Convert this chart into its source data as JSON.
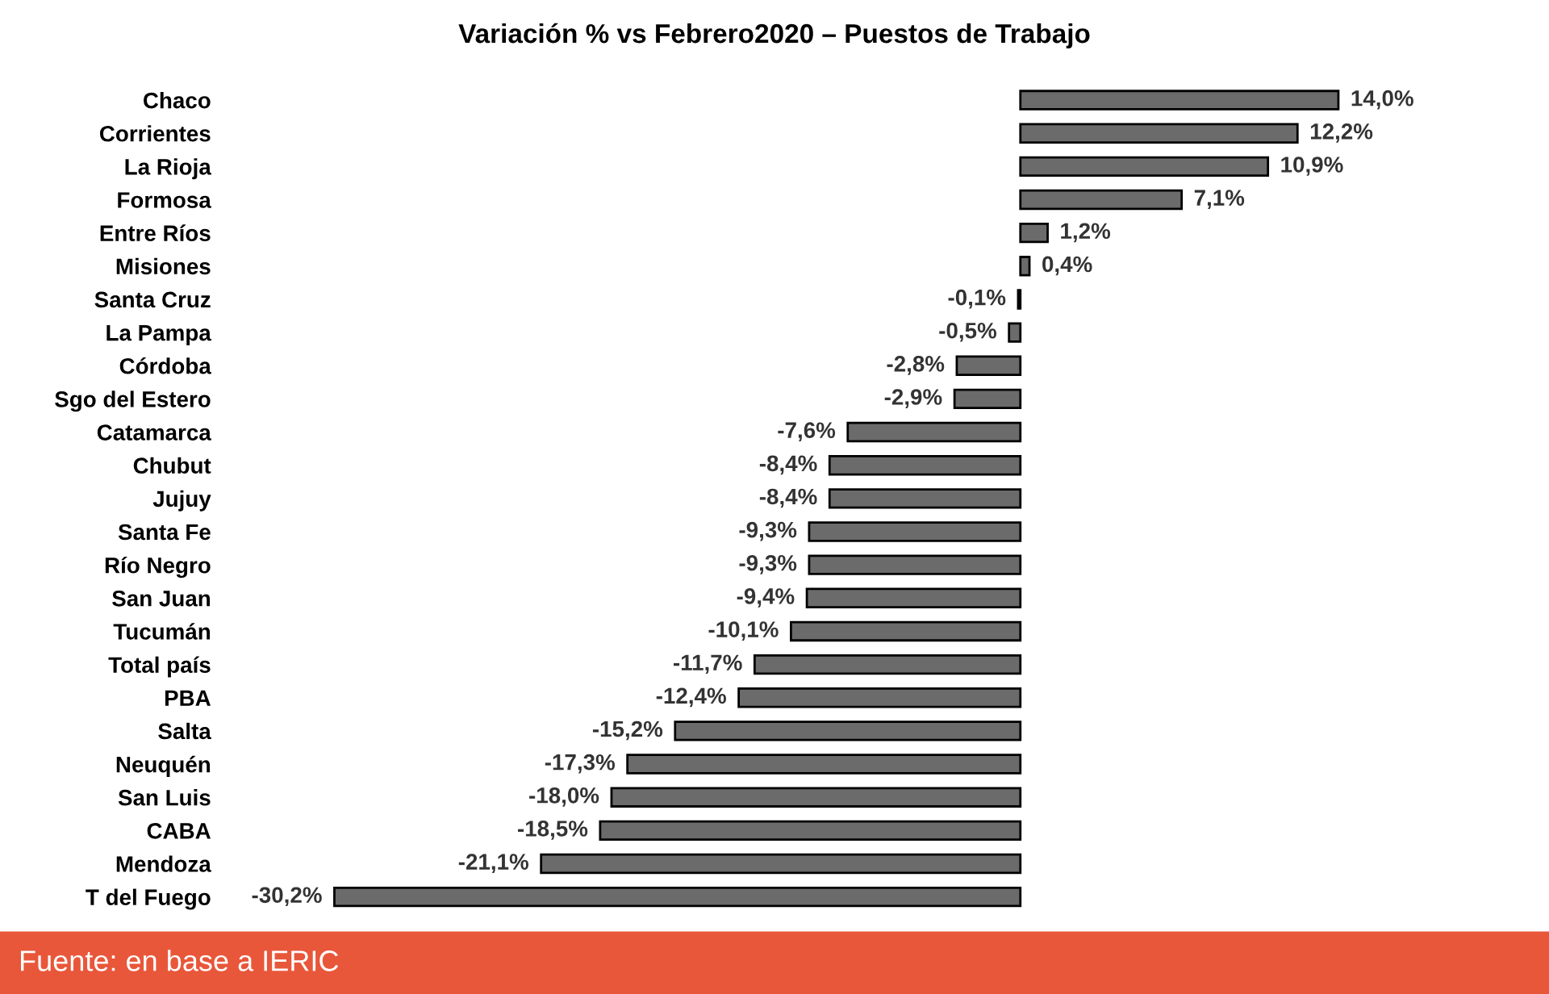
{
  "chart_data": {
    "type": "bar",
    "orientation": "horizontal",
    "title": "Variación % vs Febrero2020 – Puestos de Trabajo",
    "categories": [
      "Chaco",
      "Corrientes",
      "La Rioja",
      "Formosa",
      "Entre Ríos",
      "Misiones",
      "Santa Cruz",
      "La Pampa",
      "Córdoba",
      "Sgo del Estero",
      "Catamarca",
      "Chubut",
      "Jujuy",
      "Santa Fe",
      "Río Negro",
      "San Juan",
      "Tucumán",
      "Total país",
      "PBA",
      "Salta",
      "Neuquén",
      "San Luis",
      "CABA",
      "Mendoza",
      "T del Fuego"
    ],
    "values": [
      14.0,
      12.2,
      10.9,
      7.1,
      1.2,
      0.4,
      -0.1,
      -0.5,
      -2.8,
      -2.9,
      -7.6,
      -8.4,
      -8.4,
      -9.3,
      -9.3,
      -9.4,
      -10.1,
      -11.7,
      -12.4,
      -15.2,
      -17.3,
      -18.0,
      -18.5,
      -21.1,
      -30.2
    ],
    "value_labels": [
      "14,0%",
      "12,2%",
      "10,9%",
      "7,1%",
      "1,2%",
      "0,4%",
      "-0,1%",
      "-0,5%",
      "-2,8%",
      "-2,9%",
      "-7,6%",
      "-8,4%",
      "-8,4%",
      "-9,3%",
      "-9,3%",
      "-9,4%",
      "-10,1%",
      "-11,7%",
      "-12,4%",
      "-15,2%",
      "-17,3%",
      "-18,0%",
      "-18,5%",
      "-21,1%",
      "-30,2%"
    ],
    "color": "#6b6b6b",
    "annotations": [
      "Fuente: en base a IERIC"
    ],
    "grid": false,
    "legend": false
  }
}
